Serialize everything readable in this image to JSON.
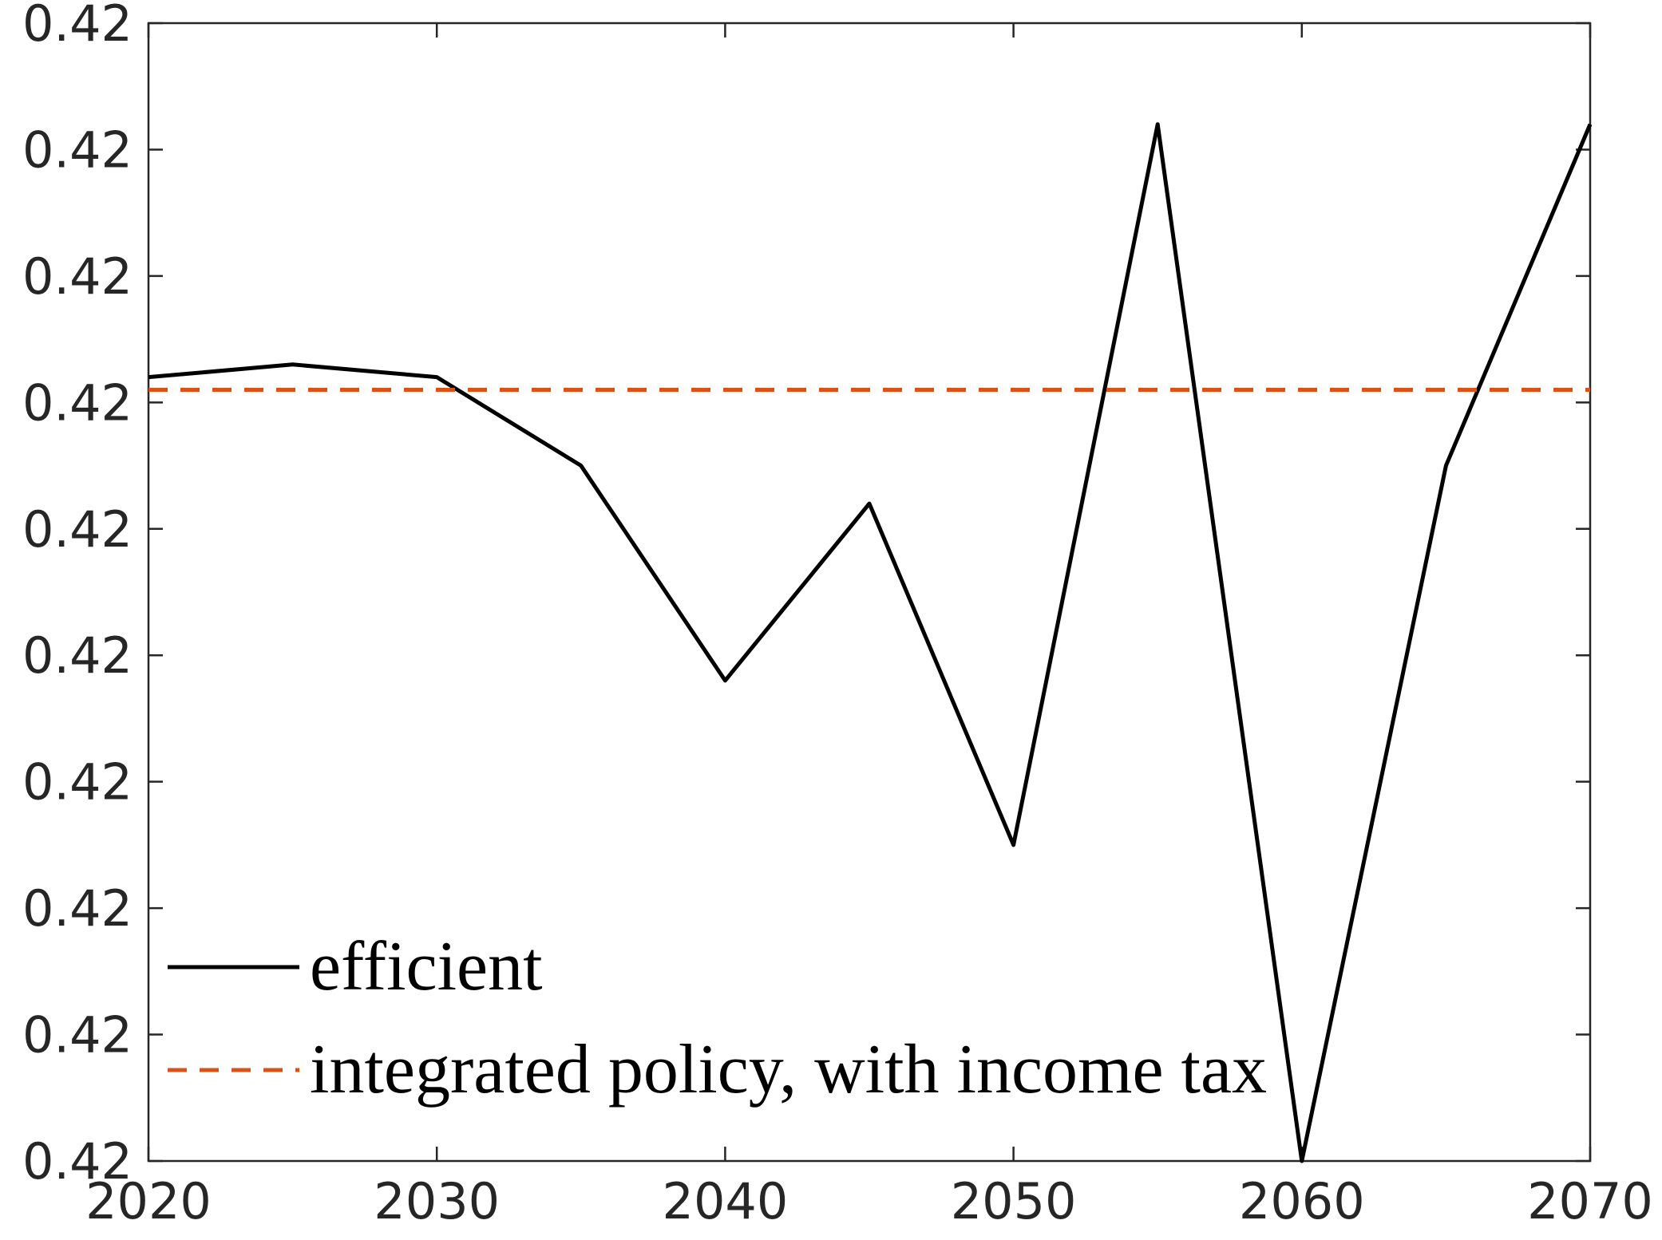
{
  "chart_data": {
    "type": "line",
    "x": [
      2020,
      2025,
      2030,
      2035,
      2040,
      2045,
      2050,
      2055,
      2060,
      2065,
      2070
    ],
    "series": [
      {
        "name": "efficient",
        "color": "#000000",
        "dash": "solid",
        "values": [
          0.420062,
          0.420063,
          0.420062,
          0.420055,
          0.420038,
          0.420052,
          0.420025,
          0.420082,
          0.42,
          0.420055,
          0.420082
        ]
      },
      {
        "name": "integrated policy, with income tax",
        "color": "#d95319",
        "dash": "dashed",
        "values": [
          0.420061,
          0.420061,
          0.420061,
          0.420061,
          0.420061,
          0.420061,
          0.420061,
          0.420061,
          0.420061,
          0.420061,
          0.420061
        ]
      }
    ],
    "xlim": [
      2020,
      2070
    ],
    "xticks": [
      2020,
      2030,
      2040,
      2050,
      2060,
      2070
    ],
    "ylim": [
      0.42,
      0.42009
    ],
    "yticks": [
      {
        "value": 0.42,
        "label": "0.42"
      },
      {
        "value": 0.42001,
        "label": "0.42"
      },
      {
        "value": 0.42002,
        "label": "0.42"
      },
      {
        "value": 0.42003,
        "label": "0.42"
      },
      {
        "value": 0.42004,
        "label": "0.42"
      },
      {
        "value": 0.42005,
        "label": "0.42"
      },
      {
        "value": 0.42006,
        "label": "0.42"
      },
      {
        "value": 0.42007,
        "label": "0.42"
      },
      {
        "value": 0.42008,
        "label": "0.42"
      },
      {
        "value": 0.42009,
        "label": "0.42"
      }
    ],
    "grid": false,
    "legend": "southwest"
  }
}
